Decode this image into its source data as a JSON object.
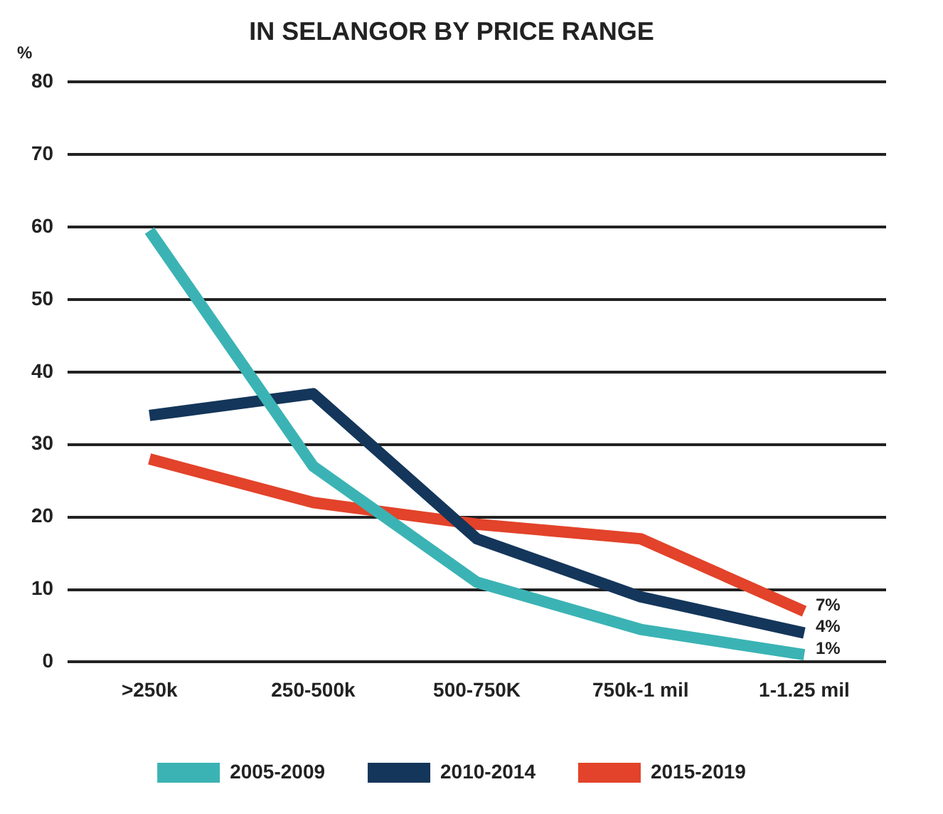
{
  "chart_data": {
    "type": "line",
    "title": "IN SELANGOR BY PRICE RANGE",
    "ylabel": "%",
    "categories": [
      ">250k",
      "250-500k",
      "500-750K",
      "750k-1 mil",
      "1-1.25 mil"
    ],
    "series": [
      {
        "name": "2005-2009",
        "color": "#3bb3b4",
        "values": [
          59.5,
          27,
          11,
          4.5,
          1
        ],
        "value_labels": [
          null,
          null,
          null,
          null,
          "1%"
        ]
      },
      {
        "name": "2010-2014",
        "color": "#14365a",
        "values": [
          34,
          37,
          17,
          9,
          4
        ],
        "value_labels": [
          null,
          null,
          null,
          null,
          "4%"
        ]
      },
      {
        "name": "2015-2019",
        "color": "#e2432a",
        "values": [
          28,
          22,
          19,
          17,
          7
        ],
        "value_labels": [
          null,
          null,
          null,
          null,
          "7%"
        ]
      }
    ],
    "ylim": [
      0,
      80
    ],
    "yticks": [
      0,
      10,
      20,
      30,
      40,
      50,
      60,
      70,
      80
    ],
    "grid": "y",
    "legend": "bottom",
    "marker": "none",
    "line_style": "solid"
  }
}
